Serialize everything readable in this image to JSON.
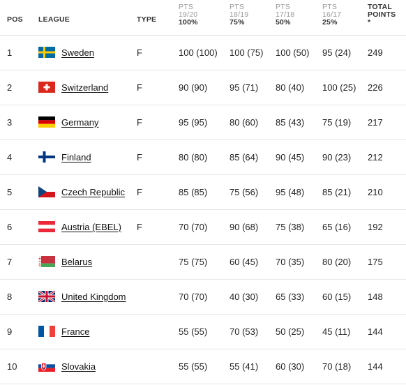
{
  "headers": {
    "pos": "POS",
    "league": "LEAGUE",
    "type": "TYPE",
    "seasons": [
      {
        "line1": "PTS",
        "line2": "19/20",
        "weight": "100%"
      },
      {
        "line1": "PTS",
        "line2": "18/19",
        "weight": "75%"
      },
      {
        "line1": "PTS",
        "line2": "17/18",
        "weight": "50%"
      },
      {
        "line1": "PTS",
        "line2": "16/17",
        "weight": "25%"
      }
    ],
    "total_line1": "TOTAL",
    "total_line2": "POINTS",
    "total_line3": "*"
  },
  "rows": [
    {
      "pos": "1",
      "league": "Sweden",
      "flag": "sweden-flag-icon",
      "type": "F",
      "s1": "100 (100)",
      "s2": "100 (75)",
      "s3": "100 (50)",
      "s4": "95 (24)",
      "total": "249"
    },
    {
      "pos": "2",
      "league": "Switzerland",
      "flag": "switzerland-flag-icon",
      "type": "F",
      "s1": "90 (90)",
      "s2": "95 (71)",
      "s3": "80 (40)",
      "s4": "100 (25)",
      "total": "226"
    },
    {
      "pos": "3",
      "league": "Germany",
      "flag": "germany-flag-icon",
      "type": "F",
      "s1": "95 (95)",
      "s2": "80 (60)",
      "s3": "85 (43)",
      "s4": "75 (19)",
      "total": "217"
    },
    {
      "pos": "4",
      "league": "Finland",
      "flag": "finland-flag-icon",
      "type": "F",
      "s1": "80 (80)",
      "s2": "85 (64)",
      "s3": "90 (45)",
      "s4": "90 (23)",
      "total": "212"
    },
    {
      "pos": "5",
      "league": "Czech Republic",
      "flag": "czech-republic-flag-icon",
      "type": "F",
      "s1": "85 (85)",
      "s2": "75 (56)",
      "s3": "95 (48)",
      "s4": "85 (21)",
      "total": "210"
    },
    {
      "pos": "6",
      "league": "Austria (EBEL)",
      "flag": "austria-flag-icon",
      "type": "F",
      "s1": "70 (70)",
      "s2": "90 (68)",
      "s3": "75 (38)",
      "s4": "65 (16)",
      "total": "192"
    },
    {
      "pos": "7",
      "league": "Belarus",
      "flag": "belarus-flag-icon",
      "type": "",
      "s1": "75 (75)",
      "s2": "60 (45)",
      "s3": "70 (35)",
      "s4": "80 (20)",
      "total": "175"
    },
    {
      "pos": "8",
      "league": "United Kingdom",
      "flag": "united-kingdom-flag-icon",
      "type": "",
      "s1": "70 (70)",
      "s2": "40 (30)",
      "s3": "65 (33)",
      "s4": "60 (15)",
      "total": "148"
    },
    {
      "pos": "9",
      "league": "France",
      "flag": "france-flag-icon",
      "type": "",
      "s1": "55 (55)",
      "s2": "70 (53)",
      "s3": "50 (25)",
      "s4": "45 (11)",
      "total": "144"
    },
    {
      "pos": "10",
      "league": "Slovakia",
      "flag": "slovakia-flag-icon",
      "type": "",
      "s1": "55 (55)",
      "s2": "55 (41)",
      "s3": "60 (30)",
      "s4": "70 (18)",
      "total": "144"
    }
  ],
  "colors": {
    "sweden_blue": "#006aa7",
    "sweden_yellow": "#fecc00",
    "swiss_red": "#da291c",
    "germany_black": "#000000",
    "germany_red": "#dd0000",
    "germany_gold": "#ffce00",
    "finland_blue": "#003580",
    "czech_blue": "#11457e",
    "czech_red": "#d7141a",
    "austria_red": "#ed2939",
    "belarus_red": "#c8313e",
    "belarus_green": "#4aa657",
    "uk_blue": "#012169",
    "uk_red": "#c8102e",
    "france_blue": "#0055a4",
    "france_red": "#ef4135",
    "slovakia_blue": "#0b4ea2",
    "slovakia_red": "#ee1c25"
  }
}
